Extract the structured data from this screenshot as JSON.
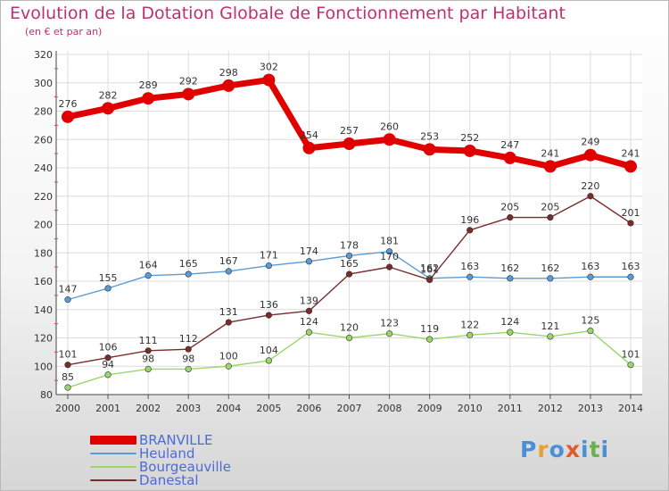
{
  "header": {
    "title": "Evolution de la Dotation Globale de Fonctionnement par Habitant",
    "subtitle": "(en € et par an)"
  },
  "logo": {
    "text": "Proxiti",
    "colors": [
      "#4a8fd8",
      "#e8a030",
      "#4a8fd8",
      "#e05a2a",
      "#4a8fd8",
      "#6ab04c",
      "#4a8fd8"
    ]
  },
  "chart_data": {
    "type": "line",
    "x": [
      "2000",
      "2001",
      "2002",
      "2003",
      "2004",
      "2005",
      "2006",
      "2007",
      "2008",
      "2009",
      "2010",
      "2011",
      "2012",
      "2013",
      "2014"
    ],
    "ylim": [
      80,
      320
    ],
    "yticks": [
      80,
      100,
      120,
      140,
      160,
      180,
      200,
      220,
      240,
      260,
      280,
      300,
      320
    ],
    "grid": true,
    "legend_position": "bottom-left",
    "series": [
      {
        "name": "BRANVILLE",
        "color": "#e00000",
        "emphasis": true,
        "values": [
          276,
          282,
          289,
          292,
          298,
          302,
          254,
          257,
          260,
          253,
          252,
          247,
          241,
          249,
          241
        ]
      },
      {
        "name": "Heuland",
        "color": "#5b9bd5",
        "values": [
          147,
          155,
          164,
          165,
          167,
          171,
          174,
          178,
          181,
          162,
          163,
          162,
          162,
          163,
          163
        ]
      },
      {
        "name": "Bourgeauville",
        "color": "#9ad66a",
        "values": [
          85,
          94,
          98,
          98,
          100,
          104,
          124,
          120,
          123,
          119,
          122,
          124,
          121,
          125,
          101
        ]
      },
      {
        "name": "Danestal",
        "color": "#7a2b2b",
        "values": [
          101,
          106,
          111,
          112,
          131,
          136,
          139,
          165,
          170,
          161,
          196,
          205,
          205,
          220,
          201
        ]
      }
    ]
  }
}
